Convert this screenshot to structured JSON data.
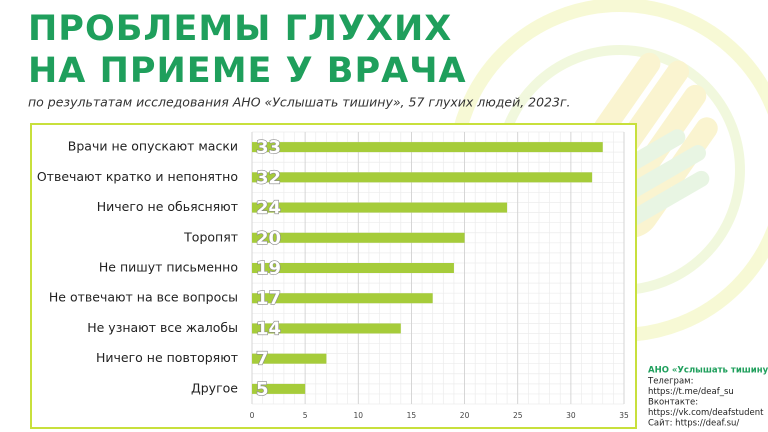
{
  "chart_data": {
    "type": "bar",
    "orientation": "horizontal",
    "title_lines": [
      "ПРОБЛЕМЫ ГЛУХИХ",
      "НА ПРИЕМЕ У ВРАЧА"
    ],
    "subtitle": "по результатам исследования АНО «Услышать тишину», 57 глухих людей, 2023г.",
    "categories": [
      "Врачи не опускают маски",
      "Отвечают кратко и непонятно",
      "Ничего не обьясняют",
      "Торопят",
      "Не пишут письменно",
      "Не отвечают на все вопросы",
      "Не узнают все жалобы",
      "Ничего не повторяют",
      "Другое"
    ],
    "values": [
      33,
      32,
      24,
      20,
      19,
      17,
      14,
      7,
      5
    ],
    "color": "#a6cc3a",
    "xlim": [
      0,
      35
    ],
    "xticks": [
      0,
      5,
      10,
      15,
      20,
      25,
      30,
      35
    ],
    "grid": true
  },
  "contacts": {
    "title": "АНО «Услышать тишину»",
    "lines": [
      "Телеграм:",
      "https://t.me/deaf_su",
      "Вконтакте:",
      "https://vk.com/deafstudent",
      "Сайт: https://deaf.su/"
    ]
  }
}
